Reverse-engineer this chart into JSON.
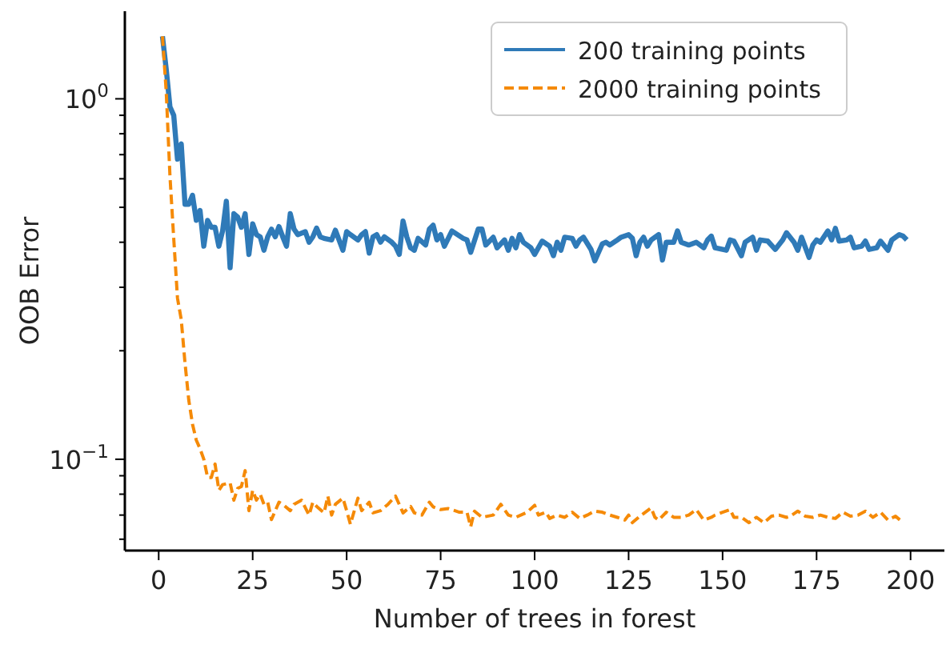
{
  "chart_data": {
    "type": "line",
    "xlabel": "Number of trees in forest",
    "ylabel": "OOB Error",
    "log": "y",
    "xlim": [
      -9,
      209
    ],
    "xticks": [
      0,
      25,
      50,
      75,
      100,
      125,
      150,
      175,
      200
    ],
    "ylim": [
      0.0558,
      1.75
    ],
    "yticks": [
      {
        "value": 0.06,
        "label": null
      },
      {
        "value": 0.07,
        "label": null
      },
      {
        "value": 0.08,
        "label": null
      },
      {
        "value": 0.09,
        "label": null
      },
      {
        "value": 0.1,
        "label": "10$^{−1}$"
      },
      {
        "value": 0.2,
        "label": null
      },
      {
        "value": 0.3,
        "label": null
      },
      {
        "value": 0.4,
        "label": null
      },
      {
        "value": 0.5,
        "label": null
      },
      {
        "value": 0.6,
        "label": null
      },
      {
        "value": 0.7,
        "label": null
      },
      {
        "value": 0.8,
        "label": null
      },
      {
        "value": 0.9,
        "label": null
      },
      {
        "value": 1,
        "label": "10$^{0}$"
      }
    ],
    "legend": "top right",
    "grid": false,
    "series": [
      {
        "name": "200 training points",
        "color": "#2f7ab8",
        "line_style": "solid",
        "x": [
          1,
          2,
          3,
          4,
          5,
          6,
          7,
          8,
          9,
          10,
          11,
          12,
          13,
          14,
          15,
          16,
          17,
          18,
          19,
          20,
          21,
          22,
          23,
          24,
          25,
          26,
          27,
          28,
          29,
          30,
          31,
          32,
          33,
          34,
          35,
          36,
          37,
          39,
          40,
          41,
          42,
          43,
          44,
          46,
          47,
          49,
          50,
          51,
          53,
          54,
          55,
          56,
          57,
          58,
          59,
          60,
          62,
          63,
          64,
          65,
          66,
          67,
          68,
          69,
          71,
          72,
          73,
          74,
          75,
          76,
          78,
          81,
          82,
          83,
          85,
          86,
          87,
          89,
          90,
          92,
          93,
          94,
          95,
          96,
          97,
          99,
          100,
          102,
          104,
          105,
          106,
          107,
          108,
          110,
          111,
          112,
          113,
          115,
          116,
          118,
          119,
          120,
          122,
          123,
          125,
          126,
          127,
          128,
          129,
          130,
          131,
          133,
          134,
          135,
          137,
          138,
          139,
          141,
          143,
          145,
          146,
          147,
          148,
          151,
          152,
          153,
          155,
          156,
          158,
          159,
          160,
          162,
          164,
          166,
          167,
          169,
          170,
          171,
          173,
          174,
          175,
          176,
          178,
          179,
          180,
          181,
          183,
          184,
          185,
          187,
          188,
          189,
          191,
          192,
          194,
          195,
          197,
          198,
          199
        ],
        "values": [
          1.49,
          1.21,
          0.95,
          0.9,
          0.68,
          0.75,
          0.51,
          0.51,
          0.54,
          0.46,
          0.49,
          0.39,
          0.46,
          0.44,
          0.44,
          0.39,
          0.43,
          0.52,
          0.34,
          0.48,
          0.47,
          0.44,
          0.48,
          0.37,
          0.45,
          0.42,
          0.414,
          0.38,
          0.414,
          0.435,
          0.414,
          0.442,
          0.414,
          0.39,
          0.48,
          0.435,
          0.42,
          0.428,
          0.4,
          0.414,
          0.438,
          0.414,
          0.41,
          0.406,
          0.432,
          0.38,
          0.428,
          0.42,
          0.406,
          0.42,
          0.428,
          0.373,
          0.414,
          0.42,
          0.4,
          0.414,
          0.4,
          0.39,
          0.37,
          0.458,
          0.414,
          0.386,
          0.38,
          0.41,
          0.393,
          0.435,
          0.446,
          0.406,
          0.42,
          0.39,
          0.43,
          0.41,
          0.406,
          0.375,
          0.435,
          0.435,
          0.393,
          0.413,
          0.386,
          0.406,
          0.38,
          0.41,
          0.386,
          0.42,
          0.4,
          0.386,
          0.37,
          0.403,
          0.39,
          0.367,
          0.4,
          0.38,
          0.413,
          0.41,
          0.39,
          0.406,
          0.413,
          0.382,
          0.355,
          0.396,
          0.4,
          0.393,
          0.406,
          0.413,
          0.42,
          0.41,
          0.367,
          0.4,
          0.413,
          0.39,
          0.406,
          0.42,
          0.357,
          0.4,
          0.4,
          0.43,
          0.4,
          0.393,
          0.4,
          0.386,
          0.406,
          0.416,
          0.386,
          0.38,
          0.406,
          0.403,
          0.367,
          0.4,
          0.413,
          0.38,
          0.406,
          0.403,
          0.382,
          0.406,
          0.425,
          0.4,
          0.38,
          0.413,
          0.363,
          0.393,
          0.406,
          0.4,
          0.43,
          0.406,
          0.437,
          0.403,
          0.406,
          0.413,
          0.386,
          0.39,
          0.403,
          0.382,
          0.386,
          0.403,
          0.38,
          0.406,
          0.42,
          0.416,
          0.406
        ]
      },
      {
        "name": "2000 training points",
        "color": "#f58a07",
        "line_style": "dashed",
        "x": [
          1,
          2,
          3,
          4,
          5,
          6,
          7,
          8,
          9,
          10,
          11,
          12,
          13,
          14,
          15,
          16,
          17,
          19,
          20,
          21,
          22,
          23,
          24,
          25,
          26,
          27,
          28,
          29,
          30,
          32,
          33,
          35,
          36,
          38,
          40,
          41,
          42,
          44,
          45,
          46,
          47,
          49,
          50,
          51,
          53,
          54,
          56,
          57,
          59,
          61,
          62,
          63,
          65,
          67,
          68,
          70,
          72,
          73,
          75,
          77,
          80,
          82,
          83,
          84,
          86,
          89,
          91,
          93,
          95,
          98,
          100,
          101,
          103,
          104,
          106,
          108,
          110,
          112,
          114,
          116,
          118,
          120,
          122,
          124,
          125,
          126,
          128,
          131,
          132,
          133,
          135,
          137,
          139,
          141,
          143,
          145,
          147,
          148,
          150,
          152,
          153,
          155,
          157,
          159,
          161,
          163,
          165,
          167,
          168,
          170,
          172,
          174,
          176,
          178,
          180,
          182,
          184,
          186,
          188,
          190,
          192,
          194,
          196,
          198
        ],
        "values": [
          1.49,
          1.05,
          0.61,
          0.41,
          0.28,
          0.244,
          0.185,
          0.146,
          0.125,
          0.113,
          0.107,
          0.1,
          0.089,
          0.089,
          0.097,
          0.082,
          0.085,
          0.086,
          0.077,
          0.083,
          0.084,
          0.093,
          0.072,
          0.082,
          0.077,
          0.08,
          0.075,
          0.076,
          0.068,
          0.076,
          0.075,
          0.072,
          0.075,
          0.077,
          0.07,
          0.076,
          0.074,
          0.071,
          0.079,
          0.07,
          0.075,
          0.078,
          0.072,
          0.066,
          0.078,
          0.072,
          0.076,
          0.071,
          0.072,
          0.075,
          0.077,
          0.079,
          0.071,
          0.074,
          0.071,
          0.07,
          0.076,
          0.0738,
          0.0725,
          0.073,
          0.0713,
          0.0713,
          0.065,
          0.0718,
          0.069,
          0.07,
          0.075,
          0.07,
          0.069,
          0.0713,
          0.0745,
          0.07,
          0.0713,
          0.0685,
          0.07,
          0.069,
          0.0713,
          0.0685,
          0.07,
          0.0718,
          0.0713,
          0.07,
          0.069,
          0.0678,
          0.07,
          0.0667,
          0.0695,
          0.0733,
          0.069,
          0.0678,
          0.0713,
          0.069,
          0.069,
          0.07,
          0.0725,
          0.0678,
          0.069,
          0.07,
          0.0713,
          0.0725,
          0.069,
          0.069,
          0.0667,
          0.069,
          0.0667,
          0.0695,
          0.07,
          0.069,
          0.0695,
          0.0718,
          0.0695,
          0.069,
          0.07,
          0.069,
          0.0685,
          0.0713,
          0.0695,
          0.07,
          0.0718,
          0.069,
          0.0713,
          0.0678,
          0.0695,
          0.0667
        ]
      }
    ]
  }
}
